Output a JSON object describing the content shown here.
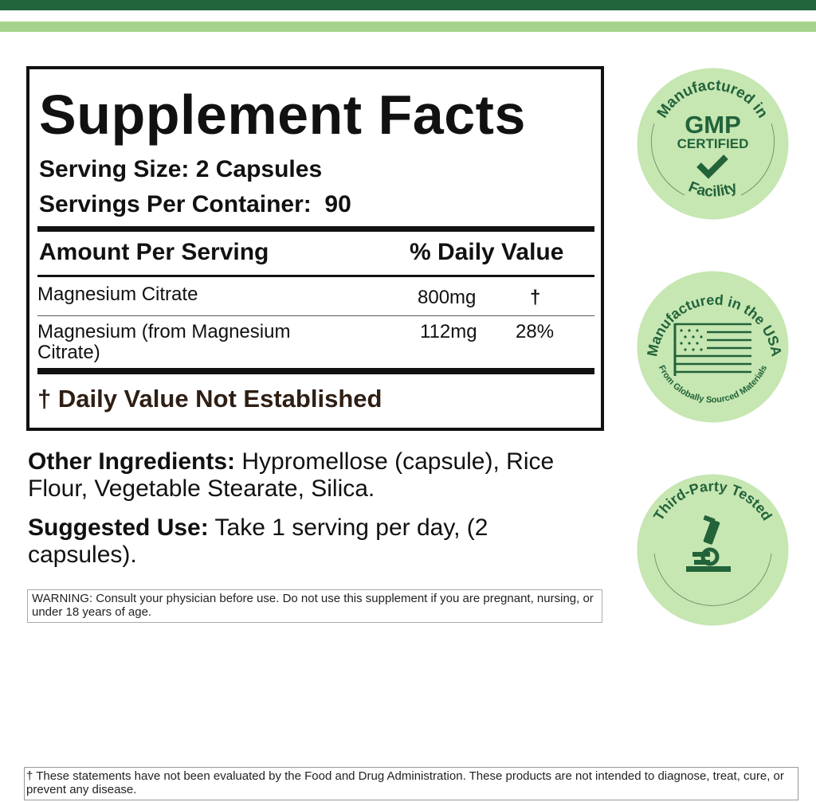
{
  "colors": {
    "dark_green": "#21633b",
    "light_green": "#a6d48c",
    "badge_fill": "#c6e6b2"
  },
  "facts": {
    "title": "Supplement Facts",
    "serving_size": "Serving Size: 2 Capsules",
    "servings_per_container": "Servings Per Container:  90",
    "header_amount": "Amount Per Serving",
    "header_dv": "% Daily Value",
    "rows": [
      {
        "name": "Magnesium Citrate",
        "amount": "800mg",
        "dv": "†"
      },
      {
        "name": "Magnesium (from Magnesium Citrate)",
        "amount": "112mg",
        "dv": "28%"
      }
    ],
    "footnote": "† Daily Value Not Established"
  },
  "other_ingredients": {
    "label": "Other Ingredients:",
    "text": " Hypromellose (capsule), Rice Flour, Vegetable Stearate, Silica."
  },
  "suggested_use": {
    "label": "Suggested Use:",
    "text": " Take 1 serving per day, (2 capsules)."
  },
  "warning": "WARNING: Consult your physician before use. Do not use this supplement if you are pregnant, nursing, or under 18 years of age.",
  "disclaimer": "† These statements have not been evaluated by the Food and Drug Administration. These products are not intended to diagnose, treat, cure, or prevent any disease.",
  "badges": {
    "gmp": {
      "top": "Manufactured in",
      "big": "GMP",
      "mid": "CERTIFIED",
      "bottom": "Facility",
      "icon": "checkmark-icon"
    },
    "usa": {
      "top": "Manufactured in the USA",
      "bottom": "From Globally Sourced Materials",
      "icon": "us-flag-icon"
    },
    "tested": {
      "top": "Third-Party Tested",
      "icon": "microscope-icon"
    }
  }
}
